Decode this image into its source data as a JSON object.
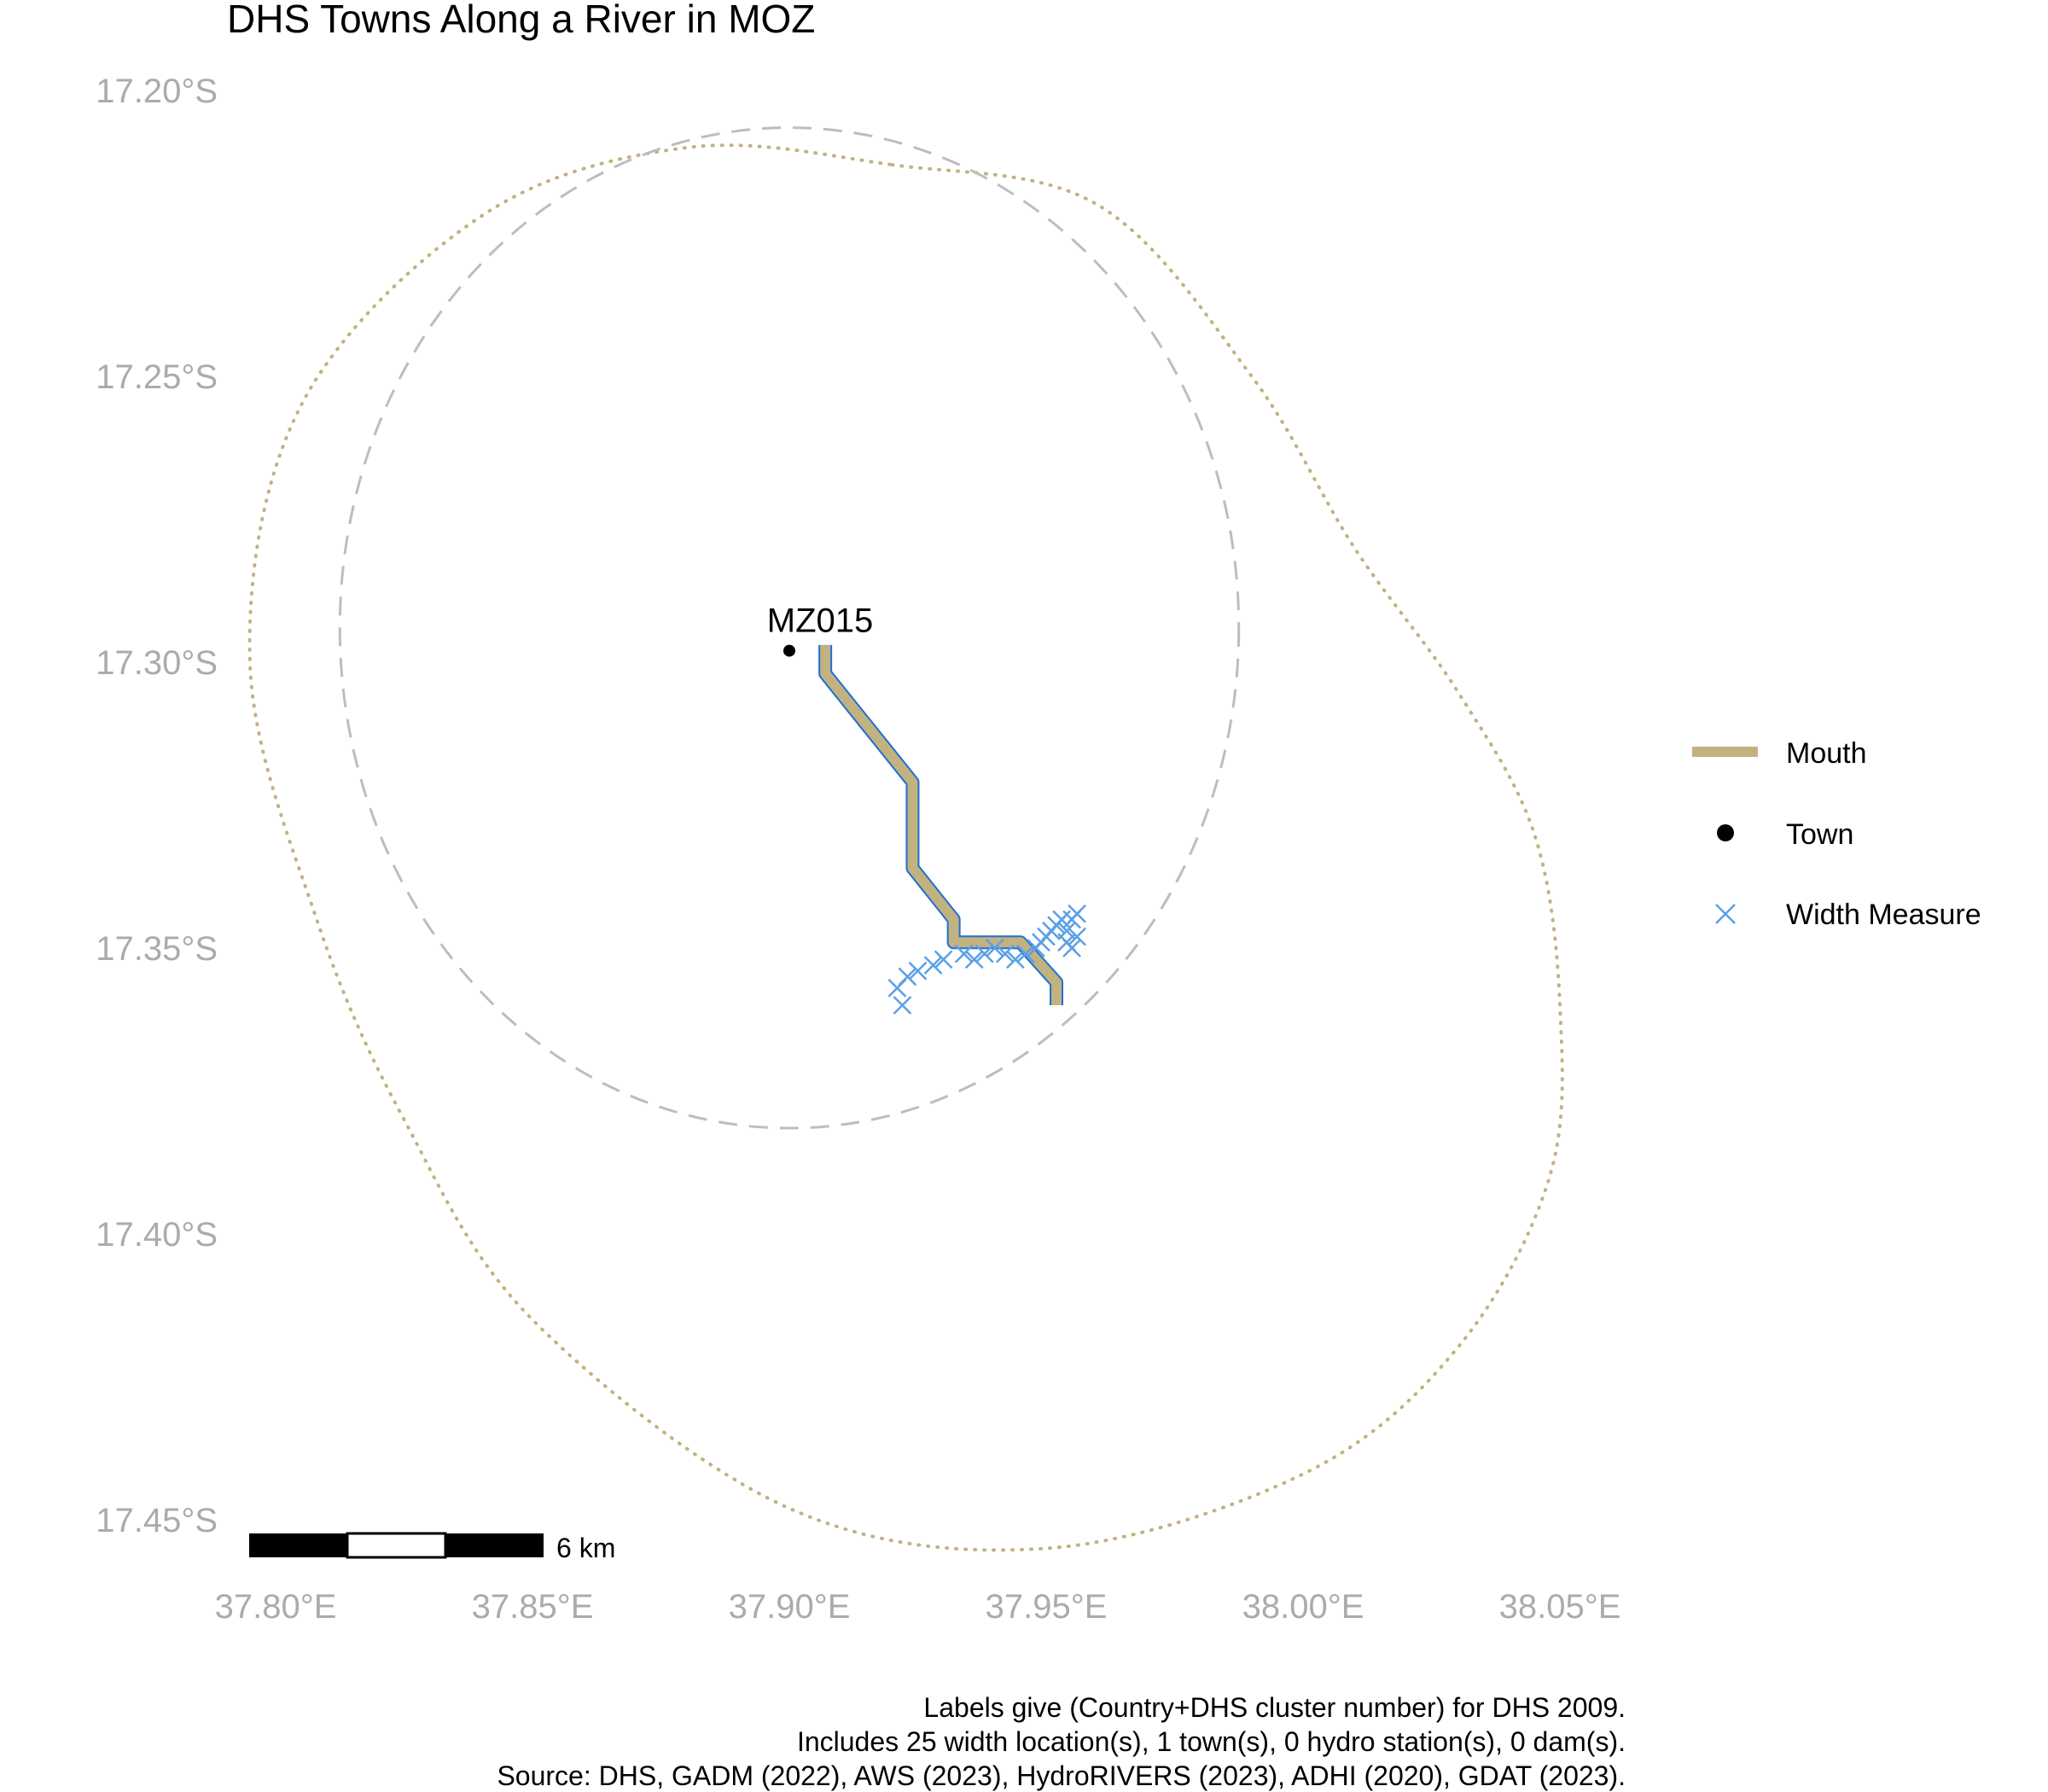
{
  "title": "DHS Towns Along a River in MOZ",
  "caption": [
    "Labels give (Country+DHS cluster number) for DHS 2009.",
    "Includes 25 width location(s), 1 town(s), 0 hydro station(s), 0 dam(s).",
    "Source: DHS, GADM (2022), AWS (2023), HydroRIVERS (2023), ADHI (2020), GDAT (2023)."
  ],
  "scale_bar": {
    "label": "6 km"
  },
  "colors": {
    "mouth": "#c2b280",
    "river_outline": "#1f6fd1",
    "width_measure": "#5aa0e6",
    "town": "#000000",
    "dashed_circle": "#bdbdbd",
    "dotted_boundary": "#c2b280",
    "tick_text": "#ababab"
  },
  "chart_data": {
    "type": "map",
    "title": "DHS Towns Along a River in MOZ",
    "xlim": [
      37.775,
      38.05
    ],
    "ylim": [
      -17.455,
      -17.195
    ],
    "x_ticks": [
      {
        "value": 37.8,
        "label": "37.80°E"
      },
      {
        "value": 37.85,
        "label": "37.85°E"
      },
      {
        "value": 37.9,
        "label": "37.90°E"
      },
      {
        "value": 37.95,
        "label": "37.95°E"
      },
      {
        "value": 38.0,
        "label": "38.00°E"
      },
      {
        "value": 38.05,
        "label": "38.05°E"
      }
    ],
    "y_ticks": [
      {
        "value": -17.2,
        "label": "17.20°S"
      },
      {
        "value": -17.25,
        "label": "17.25°S"
      },
      {
        "value": -17.3,
        "label": "17.30°S"
      },
      {
        "value": -17.35,
        "label": "17.35°S"
      },
      {
        "value": -17.4,
        "label": "17.40°S"
      },
      {
        "value": -17.45,
        "label": "17.45°S"
      }
    ],
    "grid": false,
    "legend": {
      "position": "right",
      "entries": [
        {
          "label": "Mouth",
          "symbol": "line",
          "color": "#c2b280"
        },
        {
          "label": "Town",
          "symbol": "point",
          "color": "#000000"
        },
        {
          "label": "Width Measure",
          "symbol": "cross",
          "color": "#5aa0e6"
        }
      ]
    },
    "towns": [
      {
        "label": "MZ015",
        "lon": 37.9,
        "lat": -17.298
      }
    ],
    "river_mouth": [
      [
        37.907,
        -17.297
      ],
      [
        37.907,
        -17.302
      ],
      [
        37.924,
        -17.321
      ],
      [
        37.924,
        -17.336
      ],
      [
        37.932,
        -17.345
      ],
      [
        37.932,
        -17.349
      ],
      [
        37.945,
        -17.349
      ],
      [
        37.952,
        -17.356
      ],
      [
        37.952,
        -17.36
      ]
    ],
    "width_measures": [
      [
        37.921,
        -17.357
      ],
      [
        37.922,
        -17.36
      ],
      [
        37.923,
        -17.355
      ],
      [
        37.925,
        -17.354
      ],
      [
        37.928,
        -17.353
      ],
      [
        37.93,
        -17.352
      ],
      [
        37.934,
        -17.351
      ],
      [
        37.936,
        -17.352
      ],
      [
        37.938,
        -17.351
      ],
      [
        37.94,
        -17.35
      ],
      [
        37.942,
        -17.351
      ],
      [
        37.944,
        -17.352
      ],
      [
        37.946,
        -17.351
      ],
      [
        37.948,
        -17.35
      ],
      [
        37.949,
        -17.349
      ],
      [
        37.95,
        -17.348
      ],
      [
        37.951,
        -17.347
      ],
      [
        37.952,
        -17.346
      ],
      [
        37.953,
        -17.345
      ],
      [
        37.954,
        -17.349
      ],
      [
        37.954,
        -17.347
      ],
      [
        37.955,
        -17.35
      ],
      [
        37.955,
        -17.345
      ],
      [
        37.956,
        -17.344
      ],
      [
        37.956,
        -17.348
      ]
    ],
    "dashed_circle": {
      "center_lon": 37.9,
      "center_lat": -17.294,
      "radius_deg": 0.0875
    },
    "dotted_boundary": [
      [
        37.92,
        -17.213
      ],
      [
        37.96,
        -17.22
      ],
      [
        37.99,
        -17.25
      ],
      [
        38.01,
        -17.28
      ],
      [
        38.03,
        -17.305
      ],
      [
        38.045,
        -17.33
      ],
      [
        38.05,
        -17.36
      ],
      [
        38.048,
        -17.39
      ],
      [
        38.03,
        -17.42
      ],
      [
        38.0,
        -17.442
      ],
      [
        37.95,
        -17.455
      ],
      [
        37.9,
        -17.448
      ],
      [
        37.85,
        -17.415
      ],
      [
        37.825,
        -17.38
      ],
      [
        37.808,
        -17.345
      ],
      [
        37.795,
        -17.3
      ],
      [
        37.805,
        -17.255
      ],
      [
        37.84,
        -17.222
      ],
      [
        37.88,
        -17.21
      ]
    ]
  }
}
